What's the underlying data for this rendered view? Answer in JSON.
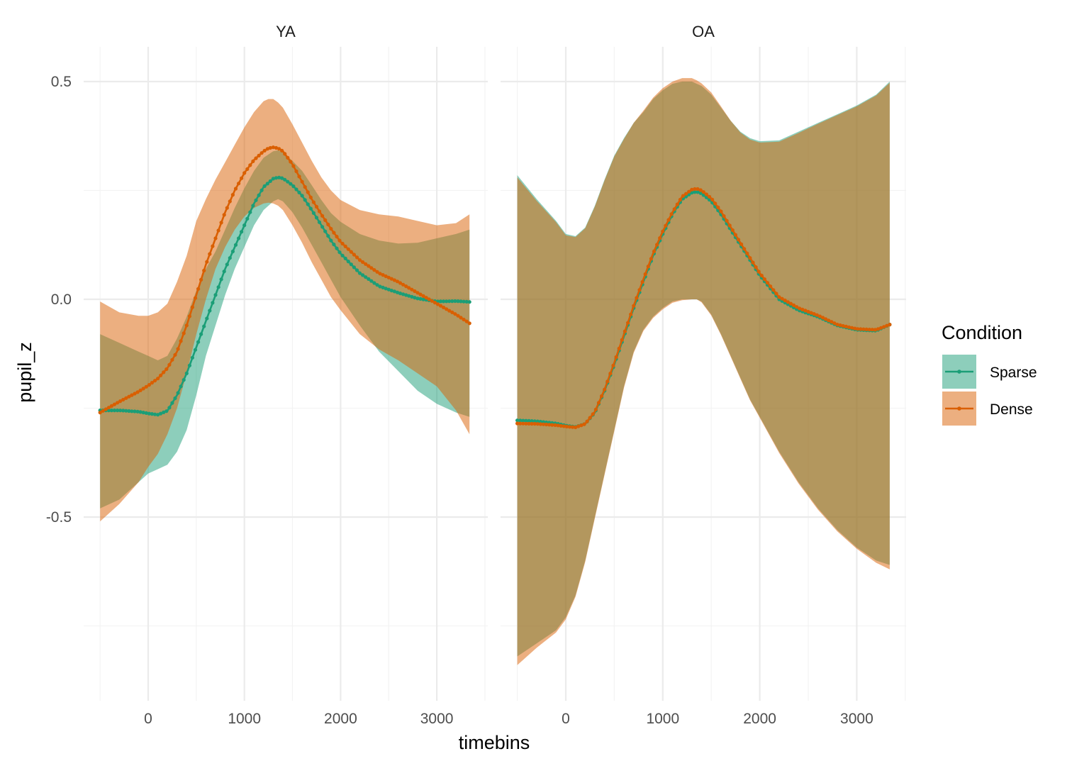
{
  "chart_data": {
    "type": "line",
    "xlabel": "timebins",
    "ylabel": "pupil_z",
    "x_ticks": [
      0,
      1000,
      2000,
      3000
    ],
    "x_tick_labels": [
      "0",
      "1000",
      "2000",
      "3000"
    ],
    "y_ticks": [
      -0.5,
      0.0,
      0.5
    ],
    "y_tick_labels": [
      "-0.5",
      "0.0",
      "0.5"
    ],
    "xlim": [
      -640,
      3520
    ],
    "ylim": [
      -0.91,
      0.58
    ],
    "grid": true,
    "legend": {
      "title": "Condition",
      "position": "right",
      "entries": [
        "Sparse",
        "Dense"
      ]
    },
    "colors": {
      "Sparse": "#1b9e77",
      "Dense": "#d95f02",
      "Sparse_ribbon": "rgba(27,158,119,0.5)",
      "Dense_ribbon": "rgba(217,95,2,0.5)",
      "grid_major": "#ebebeb",
      "grid_minor": "#f3f3f3"
    },
    "panels": [
      {
        "title": "YA",
        "series": [
          {
            "name": "Sparse",
            "x": [
              -500,
              -300,
              -100,
              0,
              100,
              200,
              300,
              400,
              500,
              600,
              700,
              800,
              900,
              1000,
              1100,
              1200,
              1300,
              1350,
              1400,
              1500,
              1600,
              1700,
              1800,
              1900,
              2000,
              2200,
              2400,
              2600,
              2800,
              3000,
              3200,
              3340
            ],
            "y": [
              -0.255,
              -0.255,
              -0.258,
              -0.262,
              -0.265,
              -0.256,
              -0.22,
              -0.17,
              -0.11,
              -0.05,
              0.01,
              0.07,
              0.12,
              0.17,
              0.22,
              0.258,
              0.277,
              0.28,
              0.278,
              0.262,
              0.238,
              0.205,
              0.17,
              0.135,
              0.105,
              0.06,
              0.03,
              0.015,
              0.002,
              -0.005,
              -0.004,
              -0.006
            ],
            "lower": [
              -0.48,
              -0.46,
              -0.42,
              -0.4,
              -0.39,
              -0.38,
              -0.35,
              -0.3,
              -0.22,
              -0.13,
              -0.06,
              0.01,
              0.07,
              0.12,
              0.17,
              0.205,
              0.225,
              0.23,
              0.225,
              0.2,
              0.165,
              0.125,
              0.085,
              0.045,
              0.005,
              -0.06,
              -0.12,
              -0.165,
              -0.21,
              -0.24,
              -0.26,
              -0.27
            ],
            "upper": [
              -0.08,
              -0.1,
              -0.12,
              -0.13,
              -0.14,
              -0.13,
              -0.09,
              -0.04,
              0.02,
              0.07,
              0.11,
              0.16,
              0.21,
              0.255,
              0.295,
              0.325,
              0.34,
              0.342,
              0.338,
              0.318,
              0.295,
              0.262,
              0.228,
              0.198,
              0.178,
              0.15,
              0.135,
              0.128,
              0.13,
              0.14,
              0.15,
              0.16
            ]
          },
          {
            "name": "Dense",
            "x": [
              -500,
              -300,
              -100,
              0,
              100,
              200,
              300,
              400,
              500,
              600,
              700,
              800,
              900,
              1000,
              1100,
              1200,
              1250,
              1300,
              1350,
              1400,
              1500,
              1600,
              1700,
              1800,
              1900,
              2000,
              2200,
              2400,
              2600,
              2800,
              3000,
              3200,
              3340
            ],
            "y": [
              -0.26,
              -0.235,
              -0.212,
              -0.198,
              -0.182,
              -0.158,
              -0.12,
              -0.06,
              0.01,
              0.08,
              0.14,
              0.2,
              0.25,
              0.29,
              0.32,
              0.34,
              0.347,
              0.349,
              0.347,
              0.34,
              0.31,
              0.27,
              0.23,
              0.195,
              0.162,
              0.132,
              0.09,
              0.06,
              0.04,
              0.015,
              -0.01,
              -0.035,
              -0.055
            ],
            "lower": [
              -0.51,
              -0.47,
              -0.42,
              -0.385,
              -0.355,
              -0.31,
              -0.25,
              -0.17,
              -0.08,
              0.0,
              0.07,
              0.12,
              0.16,
              0.19,
              0.21,
              0.22,
              0.222,
              0.22,
              0.215,
              0.205,
              0.17,
              0.13,
              0.085,
              0.045,
              0.005,
              -0.025,
              -0.08,
              -0.115,
              -0.14,
              -0.17,
              -0.2,
              -0.255,
              -0.31
            ],
            "upper": [
              -0.005,
              -0.03,
              -0.038,
              -0.038,
              -0.03,
              -0.01,
              0.04,
              0.1,
              0.18,
              0.23,
              0.275,
              0.315,
              0.355,
              0.395,
              0.43,
              0.455,
              0.46,
              0.46,
              0.452,
              0.44,
              0.402,
              0.36,
              0.318,
              0.28,
              0.25,
              0.228,
              0.205,
              0.195,
              0.19,
              0.18,
              0.17,
              0.175,
              0.195
            ]
          }
        ]
      },
      {
        "title": "OA",
        "series": [
          {
            "name": "Sparse",
            "x": [
              -500,
              -300,
              -100,
              0,
              100,
              200,
              300,
              400,
              500,
              600,
              700,
              800,
              900,
              1000,
              1100,
              1200,
              1300,
              1350,
              1400,
              1500,
              1600,
              1700,
              1800,
              1900,
              2000,
              2200,
              2400,
              2600,
              2800,
              3000,
              3200,
              3340
            ],
            "y": [
              -0.278,
              -0.28,
              -0.285,
              -0.29,
              -0.293,
              -0.286,
              -0.26,
              -0.21,
              -0.15,
              -0.085,
              -0.02,
              0.04,
              0.1,
              0.15,
              0.195,
              0.23,
              0.245,
              0.247,
              0.243,
              0.225,
              0.195,
              0.16,
              0.125,
              0.09,
              0.055,
              0.0,
              -0.025,
              -0.04,
              -0.06,
              -0.07,
              -0.072,
              -0.058
            ],
            "lower": [
              -0.82,
              -0.79,
              -0.76,
              -0.73,
              -0.68,
              -0.6,
              -0.5,
              -0.4,
              -0.3,
              -0.2,
              -0.12,
              -0.07,
              -0.04,
              -0.02,
              -0.005,
              0.0,
              0.0,
              0.0,
              -0.005,
              -0.035,
              -0.08,
              -0.13,
              -0.18,
              -0.23,
              -0.27,
              -0.35,
              -0.42,
              -0.48,
              -0.53,
              -0.57,
              -0.6,
              -0.61
            ],
            "upper": [
              0.285,
              0.23,
              0.18,
              0.15,
              0.145,
              0.165,
              0.215,
              0.275,
              0.33,
              0.37,
              0.405,
              0.43,
              0.46,
              0.48,
              0.495,
              0.5,
              0.5,
              0.495,
              0.49,
              0.47,
              0.44,
              0.41,
              0.385,
              0.37,
              0.363,
              0.365,
              0.385,
              0.405,
              0.425,
              0.445,
              0.47,
              0.5
            ]
          },
          {
            "name": "Dense",
            "x": [
              -500,
              -300,
              -100,
              0,
              100,
              200,
              300,
              400,
              500,
              600,
              700,
              800,
              900,
              1000,
              1100,
              1200,
              1300,
              1350,
              1400,
              1500,
              1600,
              1700,
              1800,
              1900,
              2000,
              2200,
              2400,
              2600,
              2800,
              3000,
              3200,
              3340
            ],
            "y": [
              -0.285,
              -0.286,
              -0.289,
              -0.292,
              -0.294,
              -0.286,
              -0.258,
              -0.207,
              -0.146,
              -0.08,
              -0.015,
              0.046,
              0.105,
              0.156,
              0.2,
              0.236,
              0.252,
              0.254,
              0.25,
              0.232,
              0.202,
              0.166,
              0.13,
              0.095,
              0.06,
              0.005,
              -0.02,
              -0.037,
              -0.058,
              -0.068,
              -0.07,
              -0.058
            ],
            "lower": [
              -0.84,
              -0.8,
              -0.765,
              -0.735,
              -0.683,
              -0.603,
              -0.503,
              -0.403,
              -0.303,
              -0.203,
              -0.123,
              -0.073,
              -0.043,
              -0.023,
              -0.008,
              -0.002,
              0.0,
              0.0,
              -0.007,
              -0.037,
              -0.082,
              -0.132,
              -0.182,
              -0.232,
              -0.272,
              -0.353,
              -0.423,
              -0.483,
              -0.533,
              -0.573,
              -0.605,
              -0.62
            ],
            "upper": [
              0.28,
              0.226,
              0.177,
              0.147,
              0.143,
              0.163,
              0.213,
              0.273,
              0.328,
              0.368,
              0.405,
              0.433,
              0.463,
              0.485,
              0.5,
              0.508,
              0.508,
              0.503,
              0.496,
              0.475,
              0.443,
              0.41,
              0.383,
              0.367,
              0.36,
              0.362,
              0.382,
              0.403,
              0.423,
              0.443,
              0.468,
              0.497
            ]
          }
        ]
      }
    ]
  }
}
